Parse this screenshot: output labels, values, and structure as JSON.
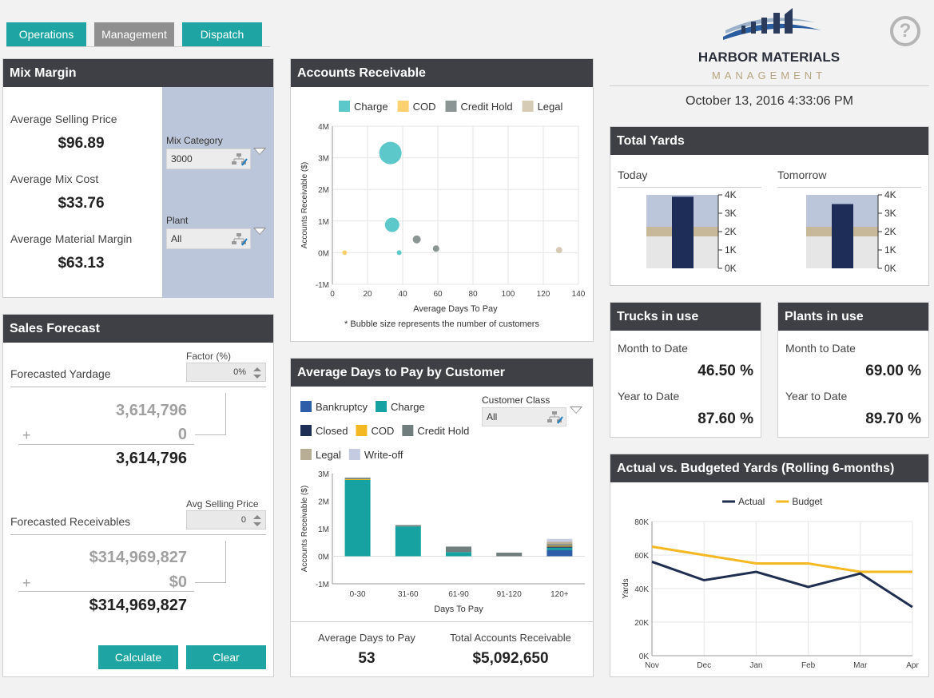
{
  "tabs": [
    {
      "label": "Operations"
    },
    {
      "label": "Management"
    },
    {
      "label": "Dispatch"
    }
  ],
  "brand": {
    "name": "HARBOR MATERIALS",
    "sub": "MANAGEMENT",
    "datetime": "October 13, 2016 4:33:06 PM",
    "help_icon": "question-circle-icon"
  },
  "mix_margin": {
    "title": "Mix Margin",
    "asp_label": "Average Selling Price",
    "asp_value": "$96.89",
    "amc_label": "Average Mix Cost",
    "amc_value": "$33.76",
    "amm_label": "Average Material Margin",
    "amm_value": "$63.13",
    "mix_category_label": "Mix Category",
    "mix_category_value": "3000",
    "plant_label": "Plant",
    "plant_value": "All"
  },
  "sales_forecast": {
    "title": "Sales Forecast",
    "factor_label": "Factor (%)",
    "factor_value": "0%",
    "yardage_label": "Forecasted Yardage",
    "yardage_base": "3,614,796",
    "yardage_plus_sign": "+",
    "yardage_add": "0",
    "yardage_total": "3,614,796",
    "asp_label": "Avg Selling Price",
    "asp_value": "0",
    "receivables_label": "Forecasted Receivables",
    "rec_base": "$314,969,827",
    "rec_plus_sign": "+",
    "rec_add": "$0",
    "rec_total": "$314,969,827",
    "calculate": "Calculate",
    "clear": "Clear"
  },
  "accounts_receivable": {
    "title": "Accounts Receivable",
    "note": "* Bubble size represents the number of customers"
  },
  "avg_days": {
    "title": "Average Days to Pay by Customer",
    "customer_class_label": "Customer Class",
    "customer_class_value": "All",
    "adtp_label": "Average Days to Pay",
    "adtp_value": "53",
    "tar_label": "Total Accounts Receivable",
    "tar_value": "$5,092,650"
  },
  "total_yards": {
    "title": "Total Yards",
    "today_label": "Today",
    "tomorrow_label": "Tomorrow",
    "today_value": 3900,
    "tomorrow_value": 3500,
    "ticks": [
      "4K",
      "3K",
      "2K",
      "1K",
      "0K"
    ]
  },
  "trucks": {
    "title": "Trucks in use",
    "mtd_label": "Month to Date",
    "mtd_value": "46.50 %",
    "ytd_label": "Year to Date",
    "ytd_value": "87.60 %"
  },
  "plants": {
    "title": "Plants in use",
    "mtd_label": "Month to Date",
    "mtd_value": "69.00 %",
    "ytd_label": "Year to Date",
    "ytd_value": "89.70 %"
  },
  "actual_budget": {
    "title": "Actual vs. Budgeted Yards (Rolling 6-months)"
  },
  "chart_data": [
    {
      "type": "scatter",
      "title": "",
      "xlabel": "Average Days To Pay",
      "ylabel": "Accounts Receivable ($)",
      "xlim": [
        0,
        140
      ],
      "ylim": [
        -1000000,
        4000000
      ],
      "xticks": [
        "0",
        "20",
        "40",
        "60",
        "80",
        "100",
        "120",
        "140"
      ],
      "yticks": [
        "4M",
        "3M",
        "2M",
        "1M",
        "0M",
        "-1M"
      ],
      "legend_position": "top",
      "grid": true,
      "series": [
        {
          "name": "Charge",
          "color": "#5cc8c9",
          "points": [
            {
              "x": 33,
              "y": 3150000,
              "size": 14
            },
            {
              "x": 34,
              "y": 880000,
              "size": 9
            },
            {
              "x": 38,
              "y": 0,
              "size": 3
            }
          ]
        },
        {
          "name": "COD",
          "color": "#fcd270",
          "points": [
            {
              "x": 7,
              "y": 0,
              "size": 3
            }
          ]
        },
        {
          "name": "Credit Hold",
          "color": "#8b9593",
          "points": [
            {
              "x": 48,
              "y": 420000,
              "size": 5
            },
            {
              "x": 59,
              "y": 130000,
              "size": 4
            }
          ]
        },
        {
          "name": "Legal",
          "color": "#d6cbb4",
          "points": [
            {
              "x": 129,
              "y": 80000,
              "size": 4
            }
          ]
        }
      ]
    },
    {
      "type": "bar",
      "stacked": true,
      "title": "",
      "xlabel": "Days To Pay",
      "ylabel": "Accounts Receivable ($)",
      "categories": [
        "0-30",
        "31-60",
        "61-90",
        "91-120",
        "120+"
      ],
      "ylim": [
        -1000000,
        3000000
      ],
      "yticks": [
        "3M",
        "2M",
        "1M",
        "0M",
        "-1M"
      ],
      "legend_position": "top",
      "series": [
        {
          "name": "Bankruptcy",
          "color": "#2f5ea8",
          "values": [
            0,
            0,
            0,
            0,
            230000
          ]
        },
        {
          "name": "Charge",
          "color": "#17a2a2",
          "values": [
            2780000,
            1080000,
            150000,
            0,
            80000
          ]
        },
        {
          "name": "Closed",
          "color": "#1d2f55",
          "values": [
            0,
            0,
            0,
            0,
            40000
          ]
        },
        {
          "name": "COD",
          "color": "#f4b822",
          "values": [
            20000,
            0,
            0,
            0,
            30000
          ]
        },
        {
          "name": "Credit Hold",
          "color": "#6f7d7c",
          "values": [
            50000,
            50000,
            200000,
            130000,
            60000
          ]
        },
        {
          "name": "Legal",
          "color": "#b8ae96",
          "values": [
            0,
            0,
            0,
            0,
            90000
          ]
        },
        {
          "name": "Write-off",
          "color": "#c5cbe0",
          "values": [
            0,
            0,
            0,
            0,
            100000
          ]
        }
      ]
    },
    {
      "type": "line",
      "title": "",
      "xlabel": "",
      "ylabel": "Yards",
      "categories": [
        "Nov",
        "Dec",
        "Jan",
        "Feb",
        "Mar",
        "Apr"
      ],
      "ylim": [
        0,
        80000
      ],
      "yticks": [
        "80K",
        "60K",
        "40K",
        "20K",
        "0K"
      ],
      "legend_position": "top",
      "grid": true,
      "series": [
        {
          "name": "Actual",
          "color": "#1f2d4f",
          "values": [
            56000,
            45000,
            50000,
            41000,
            49000,
            29000
          ]
        },
        {
          "name": "Budget",
          "color": "#f4b822",
          "values": [
            65000,
            60000,
            55000,
            55000,
            50000,
            50000
          ]
        }
      ]
    }
  ]
}
